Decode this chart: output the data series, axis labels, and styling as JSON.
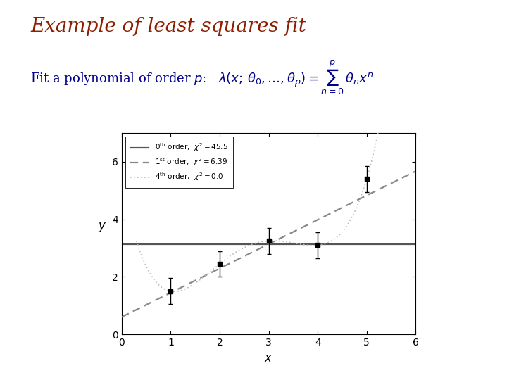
{
  "title": "Example of least squares fit",
  "title_color": "#8B2000",
  "subtitle_text": "Fit a polynomial of order ",
  "subtitle_color": "#00008B",
  "bg_color": "#FFFFFF",
  "data_points_x": [
    1.0,
    2.0,
    3.0,
    4.0,
    5.0
  ],
  "data_points_y": [
    1.5,
    2.45,
    3.25,
    3.1,
    5.4
  ],
  "data_errors": [
    0.45,
    0.45,
    0.45,
    0.45,
    0.45
  ],
  "xlim": [
    0,
    6
  ],
  "ylim": [
    0,
    7
  ],
  "xlabel": "x",
  "ylabel": "y",
  "xticks": [
    0,
    1,
    2,
    3,
    4,
    5,
    6
  ],
  "yticks": [
    0,
    2,
    4,
    6
  ],
  "legend_label0": "0  order,  chi2 = 45.5",
  "legend_label1": "1  order,  chi2 = 6.39",
  "legend_label2": "4  order,  chi2 = 0.0",
  "line0_color": "#555555",
  "line1_color": "#888888",
  "line2_color": "#BBBBBB"
}
